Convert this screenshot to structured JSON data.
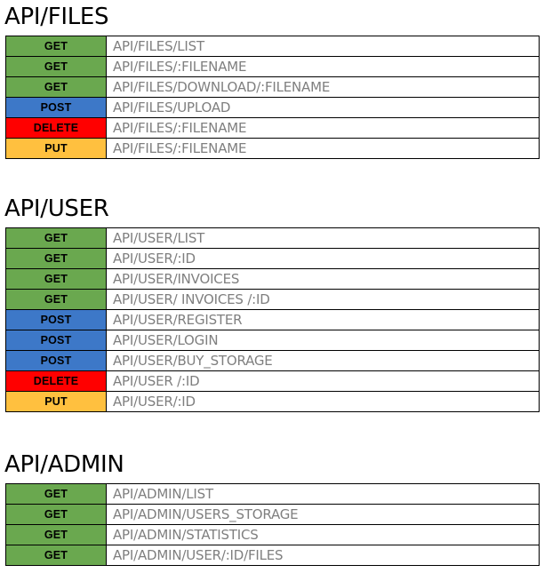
{
  "sections": [
    {
      "title": "API/FILES",
      "rows": [
        {
          "method": "GET",
          "path": "API/FILES/LIST"
        },
        {
          "method": "GET",
          "path": "API/FILES/:FILENAME"
        },
        {
          "method": "GET",
          "path": "API/FILES/DOWNLOAD/:FILENAME"
        },
        {
          "method": "POST",
          "path": "API/FILES/UPLOAD"
        },
        {
          "method": "DELETE",
          "path": "API/FILES/:FILENAME"
        },
        {
          "method": "PUT",
          "path": "API/FILES/:FILENAME"
        }
      ]
    },
    {
      "title": "API/USER",
      "rows": [
        {
          "method": "GET",
          "path": "API/USER/LIST"
        },
        {
          "method": "GET",
          "path": "API/USER/:ID"
        },
        {
          "method": "GET",
          "path": "API/USER/INVOICES"
        },
        {
          "method": "GET",
          "path": "API/USER/ INVOICES /:ID"
        },
        {
          "method": "POST",
          "path": "API/USER/REGISTER"
        },
        {
          "method": "POST",
          "path": "API/USER/LOGIN"
        },
        {
          "method": "POST",
          "path": "API/USER/BUY_STORAGE"
        },
        {
          "method": "DELETE",
          "path": "API/USER /:ID"
        },
        {
          "method": "PUT",
          "path": "API/USER/:ID"
        }
      ]
    },
    {
      "title": "API/ADMIN",
      "rows": [
        {
          "method": "GET",
          "path": "API/ADMIN/LIST"
        },
        {
          "method": "GET",
          "path": "API/ADMIN/USERS_STORAGE"
        },
        {
          "method": "GET",
          "path": "API/ADMIN/STATISTICS"
        },
        {
          "method": "GET",
          "path": "API/ADMIN/USER/:ID/FILES"
        }
      ]
    }
  ]
}
